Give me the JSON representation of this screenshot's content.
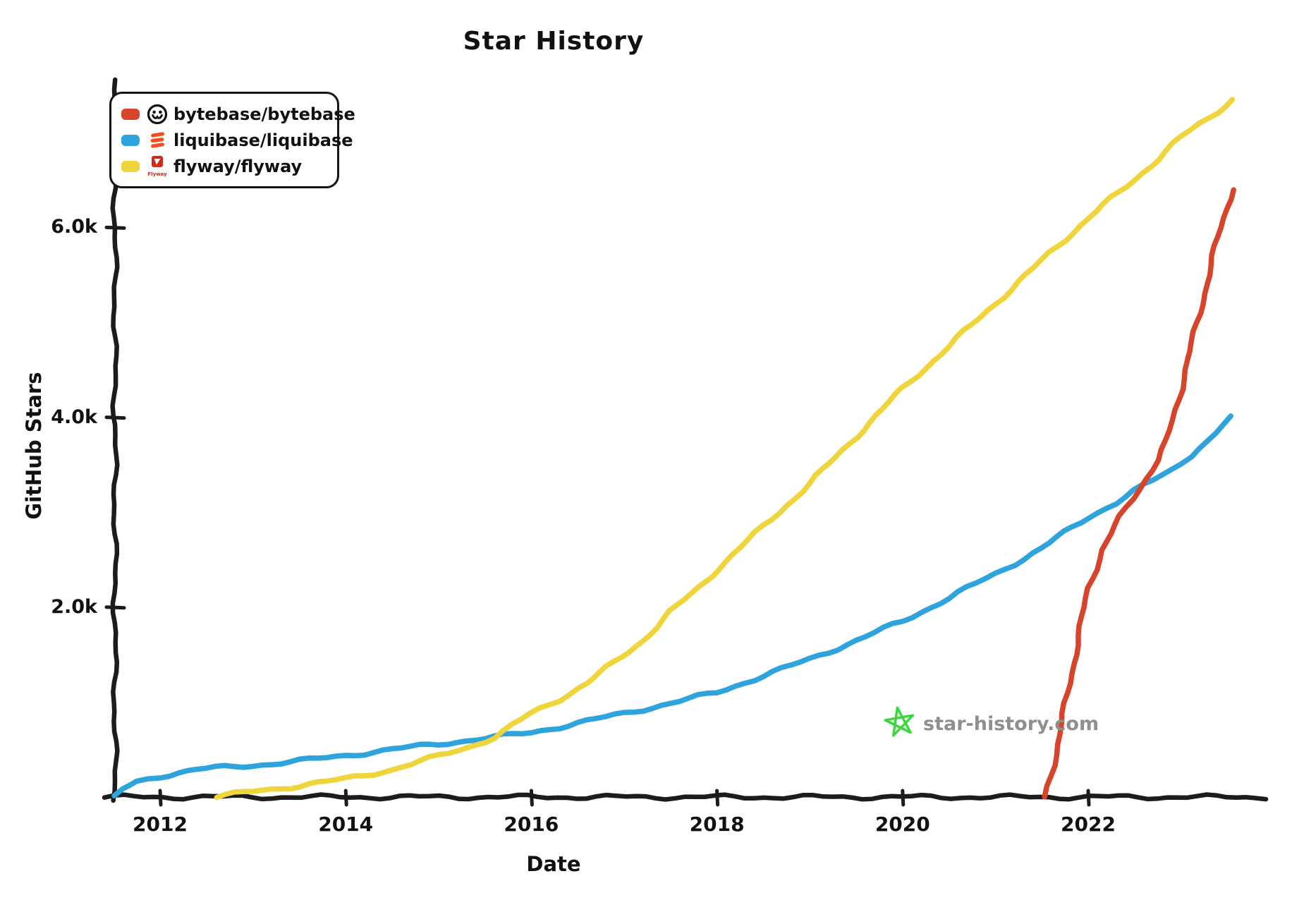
{
  "title": "Star History",
  "legend": {
    "items": [
      {
        "label": "bytebase/bytebase",
        "color": "#d5442b",
        "icon": "bytebase-logo-icon"
      },
      {
        "label": "liquibase/liquibase",
        "color": "#2ea3dc",
        "icon": "liquibase-logo-icon"
      },
      {
        "label": "flyway/flyway",
        "color": "#f0d43c",
        "icon": "flyway-logo-icon"
      }
    ]
  },
  "watermark": {
    "text": "star-history.com",
    "icon": "doodle-star-icon",
    "star_color": "#3bd63b",
    "text_color": "#8f8f8f"
  },
  "chart_data": {
    "type": "line",
    "title": "Star History",
    "xlabel": "Date",
    "ylabel": "GitHub Stars",
    "grid": false,
    "legend_position": "top-left",
    "x_range": [
      2011.5,
      2023.9
    ],
    "y_range": [
      0,
      7500
    ],
    "x_ticks": [
      2012,
      2014,
      2016,
      2018,
      2020,
      2022
    ],
    "x_tick_labels": [
      "2012",
      "2014",
      "2016",
      "2018",
      "2020",
      "2022"
    ],
    "y_ticks": [
      2000,
      4000,
      6000
    ],
    "y_tick_labels": [
      "2.0k",
      "4.0k",
      "6.0k"
    ],
    "series": [
      {
        "name": "bytebase/bytebase",
        "color": "#d5442b",
        "points": [
          [
            2021.54,
            0
          ],
          [
            2021.65,
            450
          ],
          [
            2021.8,
            1200
          ],
          [
            2021.92,
            1800
          ],
          [
            2022.0,
            2200
          ],
          [
            2022.15,
            2600
          ],
          [
            2022.35,
            2950
          ],
          [
            2022.55,
            3250
          ],
          [
            2022.75,
            3550
          ],
          [
            2022.85,
            3750
          ],
          [
            2023.0,
            4300
          ],
          [
            2023.1,
            4700
          ],
          [
            2023.25,
            5300
          ],
          [
            2023.4,
            5900
          ],
          [
            2023.55,
            6400
          ]
        ]
      },
      {
        "name": "liquibase/liquibase",
        "color": "#2ea3dc",
        "points": [
          [
            2011.52,
            0
          ],
          [
            2011.6,
            80
          ],
          [
            2011.75,
            160
          ],
          [
            2012.0,
            220
          ],
          [
            2012.4,
            290
          ],
          [
            2012.8,
            320
          ],
          [
            2013.2,
            350
          ],
          [
            2013.6,
            390
          ],
          [
            2014.0,
            440
          ],
          [
            2014.5,
            500
          ],
          [
            2015.0,
            560
          ],
          [
            2015.6,
            630
          ],
          [
            2016.0,
            680
          ],
          [
            2016.5,
            780
          ],
          [
            2017.0,
            880
          ],
          [
            2017.5,
            990
          ],
          [
            2018.0,
            1100
          ],
          [
            2018.5,
            1280
          ],
          [
            2019.0,
            1450
          ],
          [
            2019.5,
            1650
          ],
          [
            2020.0,
            1850
          ],
          [
            2020.5,
            2100
          ],
          [
            2021.0,
            2350
          ],
          [
            2021.5,
            2620
          ],
          [
            2022.0,
            2950
          ],
          [
            2022.3,
            3100
          ],
          [
            2022.6,
            3280
          ],
          [
            2022.9,
            3450
          ],
          [
            2023.1,
            3600
          ],
          [
            2023.3,
            3750
          ],
          [
            2023.55,
            4000
          ]
        ]
      },
      {
        "name": "flyway/flyway",
        "color": "#f0d43c",
        "points": [
          [
            2012.61,
            0
          ],
          [
            2013.0,
            60
          ],
          [
            2013.5,
            120
          ],
          [
            2014.0,
            190
          ],
          [
            2014.5,
            290
          ],
          [
            2015.0,
            430
          ],
          [
            2015.3,
            520
          ],
          [
            2015.6,
            630
          ],
          [
            2016.0,
            880
          ],
          [
            2016.3,
            1030
          ],
          [
            2016.6,
            1200
          ],
          [
            2016.9,
            1420
          ],
          [
            2017.2,
            1650
          ],
          [
            2017.5,
            1950
          ],
          [
            2017.8,
            2200
          ],
          [
            2018.0,
            2400
          ],
          [
            2018.5,
            2850
          ],
          [
            2019.0,
            3300
          ],
          [
            2019.5,
            3800
          ],
          [
            2020.0,
            4300
          ],
          [
            2020.5,
            4750
          ],
          [
            2021.0,
            5200
          ],
          [
            2021.5,
            5650
          ],
          [
            2022.0,
            6100
          ],
          [
            2022.5,
            6500
          ],
          [
            2023.0,
            6950
          ],
          [
            2023.3,
            7150
          ],
          [
            2023.55,
            7350
          ]
        ]
      }
    ]
  }
}
